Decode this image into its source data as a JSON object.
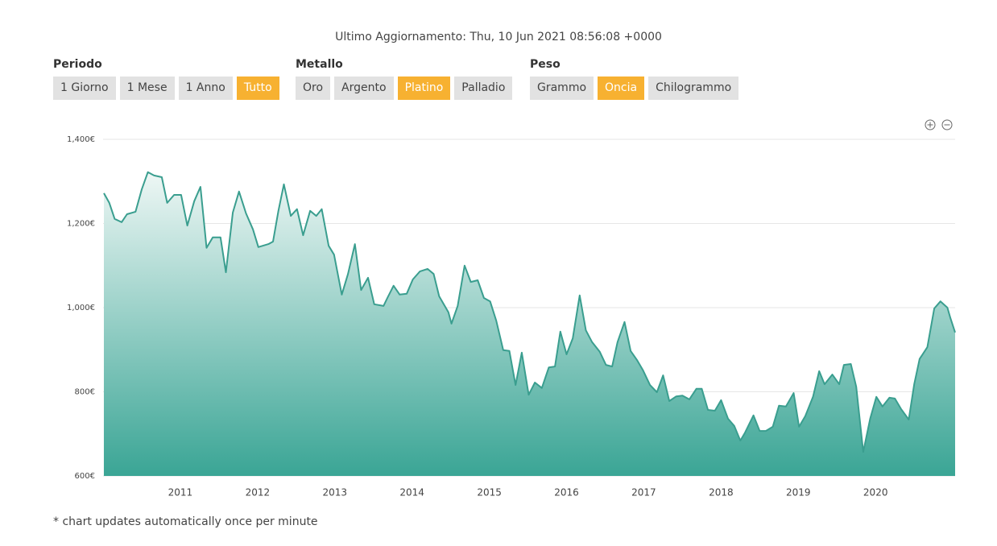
{
  "header": {
    "updated": "Ultimo Aggiornamento: Thu, 10 Jun 2021 08:56:08 +0000"
  },
  "groups": [
    {
      "label": "Periodo",
      "options": [
        "1 Giorno",
        "1 Mese",
        "1 Anno",
        "Tutto"
      ],
      "selected": 3
    },
    {
      "label": "Metallo",
      "options": [
        "Oro",
        "Argento",
        "Platino",
        "Palladio"
      ],
      "selected": 2
    },
    {
      "label": "Peso",
      "options": [
        "Grammo",
        "Oncia",
        "Chilogrammo"
      ],
      "selected": 1
    }
  ],
  "footer": {
    "note": "* chart updates automatically once per minute"
  },
  "chart_data": {
    "type": "area",
    "color": "#3a9e8f",
    "grid": true,
    "xlim": [
      2010,
      2021.03
    ],
    "xticks": [
      2011,
      2012,
      2013,
      2014,
      2015,
      2016,
      2017,
      2018,
      2019,
      2020
    ],
    "ylim": [
      600,
      1400
    ],
    "yticks": [
      {
        "value": 600,
        "label": "600€"
      },
      {
        "value": 800,
        "label": "800€"
      },
      {
        "value": 1000,
        "label": "1,000€"
      },
      {
        "value": 1200,
        "label": "1,200€"
      },
      {
        "value": 1400,
        "label": "1,400€"
      }
    ],
    "x": [
      2010.01,
      2010.08,
      2010.15,
      2010.24,
      2010.31,
      2010.42,
      2010.5,
      2010.58,
      2010.66,
      2010.76,
      2010.83,
      2010.92,
      2011.01,
      2011.09,
      2011.18,
      2011.26,
      2011.34,
      2011.42,
      2011.52,
      2011.59,
      2011.68,
      2011.76,
      2011.85,
      2011.94,
      2012.01,
      2012.14,
      2012.2,
      2012.27,
      2012.34,
      2012.43,
      2012.51,
      2012.59,
      2012.68,
      2012.76,
      2012.83,
      2012.92,
      2012.99,
      2013.09,
      2013.17,
      2013.26,
      2013.34,
      2013.43,
      2013.51,
      2013.63,
      2013.68,
      2013.76,
      2013.84,
      2013.93,
      2014.01,
      2014.1,
      2014.2,
      2014.28,
      2014.35,
      2014.47,
      2014.51,
      2014.59,
      2014.68,
      2014.76,
      2014.85,
      2014.93,
      2015.01,
      2015.09,
      2015.18,
      2015.26,
      2015.34,
      2015.42,
      2015.51,
      2015.59,
      2015.68,
      2015.77,
      2015.85,
      2015.92,
      2016,
      2016.08,
      2016.17,
      2016.25,
      2016.33,
      2016.43,
      2016.51,
      2016.59,
      2016.66,
      2016.75,
      2016.83,
      2016.91,
      2016.99,
      2017.08,
      2017.17,
      2017.25,
      2017.33,
      2017.42,
      2017.5,
      2017.59,
      2017.68,
      2017.75,
      2017.83,
      2017.92,
      2018,
      2018.09,
      2018.17,
      2018.25,
      2018.31,
      2018.42,
      2018.5,
      2018.58,
      2018.67,
      2018.75,
      2018.84,
      2018.94,
      2019.01,
      2019.09,
      2019.19,
      2019.27,
      2019.34,
      2019.44,
      2019.53,
      2019.59,
      2019.68,
      2019.75,
      2019.84,
      2019.93,
      2020.01,
      2020.09,
      2020.18,
      2020.25,
      2020.33,
      2020.43,
      2020.5,
      2020.57,
      2020.67,
      2020.76,
      2020.84,
      2020.93,
      2020.97,
      2021.03
    ],
    "values": [
      1272,
      1249,
      1211,
      1203,
      1222,
      1228,
      1281,
      1322,
      1314,
      1310,
      1249,
      1268,
      1268,
      1195,
      1253,
      1287,
      1142,
      1167,
      1167,
      1084,
      1226,
      1276,
      1224,
      1186,
      1144,
      1151,
      1157,
      1230,
      1293,
      1218,
      1234,
      1172,
      1230,
      1218,
      1234,
      1147,
      1126,
      1031,
      1080,
      1151,
      1042,
      1071,
      1008,
      1004,
      1023,
      1052,
      1031,
      1033,
      1067,
      1086,
      1092,
      1080,
      1027,
      989,
      962,
      1004,
      1100,
      1061,
      1065,
      1023,
      1015,
      969,
      899,
      897,
      816,
      893,
      793,
      822,
      809,
      858,
      860,
      943,
      889,
      927,
      1029,
      946,
      918,
      895,
      864,
      860,
      918,
      966,
      897,
      876,
      851,
      816,
      799,
      839,
      778,
      789,
      791,
      782,
      807,
      807,
      757,
      755,
      780,
      736,
      719,
      684,
      703,
      744,
      707,
      707,
      717,
      767,
      765,
      797,
      717,
      742,
      788,
      849,
      818,
      841,
      818,
      864,
      866,
      812,
      657,
      736,
      788,
      765,
      786,
      784,
      759,
      734,
      818,
      878,
      906,
      998,
      1015,
      1000,
      975,
      941
    ]
  }
}
